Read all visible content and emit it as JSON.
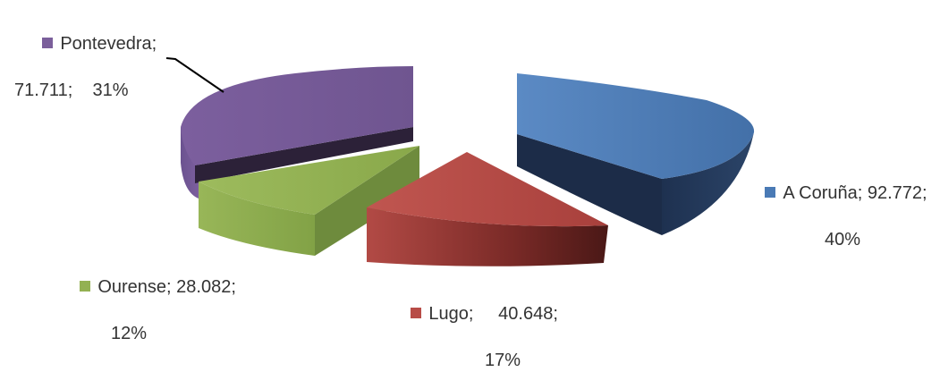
{
  "chart_data": {
    "type": "pie",
    "style": "3d exploded",
    "title": "",
    "legend": "labels beside slices",
    "slices": [
      {
        "name": "A Coruña",
        "value": "92.772",
        "percent": "40%",
        "color": "#4a7ab5"
      },
      {
        "name": "Lugo",
        "value": "40.648",
        "percent": "17%",
        "color": "#b84c47"
      },
      {
        "name": "Ourense",
        "value": "28.082",
        "percent": "12%",
        "color": "#93b152"
      },
      {
        "name": "Pontevedra",
        "value": "71.711",
        "percent": "31%",
        "color": "#7b5f9b"
      }
    ]
  },
  "labels": {
    "a_coruna": {
      "line1": "A Coruña; 92.772;",
      "line2": "40%"
    },
    "lugo": {
      "line1": "Lugo;     40.648;",
      "line2": "17%"
    },
    "ourense": {
      "line1": "Ourense; 28.082;",
      "line2": "12%"
    },
    "pontevedra": {
      "line1": "Pontevedra;",
      "line2": "71.711;    31%"
    }
  }
}
